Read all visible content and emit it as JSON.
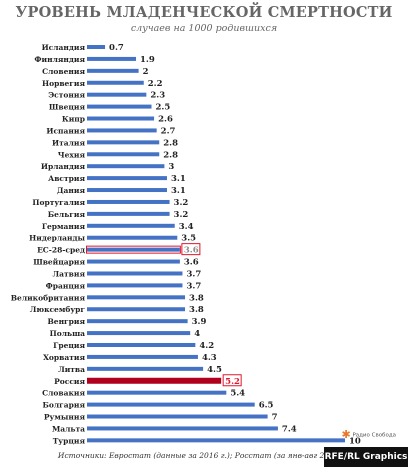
{
  "header": {
    "title": "УРОВЕНЬ МЛАДЕНЧЕСКОЙ СМЕРТНОСТИ",
    "subtitle": "случаев на 1000 родившихся"
  },
  "footer": {
    "sources": "Источники: Евростат (данные за 2016 г.); Росстат (за янв-авг 2018 г.)",
    "credit": "RFE/RL Graphics",
    "logo_text": "Радио Свобода",
    "logo_icon": "radio-svoboda-logo-icon"
  },
  "colors": {
    "bar": "#4472c4",
    "highlight_russia": "#b0001e",
    "highlight_eu": "#4472c4",
    "highlight_box": "#e0162b",
    "text": "#222222"
  },
  "chart_data": {
    "type": "bar",
    "orientation": "horizontal",
    "title": "УРОВЕНЬ МЛАДЕНЧЕСКОЙ СМЕРТНОСТИ",
    "subtitle": "случаев на 1000 родившихся",
    "xlim": [
      0,
      10
    ],
    "grid": false,
    "categories": [
      "Исландия",
      "Финляндия",
      "Словения",
      "Норвегия",
      "Эстония",
      "Швеция",
      "Кипр",
      "Испания",
      "Италия",
      "Чехия",
      "Ирландия",
      "Австрия",
      "Дания",
      "Португалия",
      "Бельгия",
      "Германия",
      "Нидерланды",
      "ЕС-28-сред",
      "Швейцария",
      "Латвия",
      "Франция",
      "Великобритания",
      "Люксембург",
      "Венгрия",
      "Польша",
      "Греция",
      "Хорватия",
      "Литва",
      "Россия",
      "Словакия",
      "Болгария",
      "Румыния",
      "Мальта",
      "Турция"
    ],
    "values": [
      0.7,
      1.9,
      2,
      2.2,
      2.3,
      2.5,
      2.6,
      2.7,
      2.8,
      2.8,
      3,
      3.1,
      3.1,
      3.2,
      3.2,
      3.4,
      3.5,
      3.6,
      3.6,
      3.7,
      3.7,
      3.8,
      3.8,
      3.9,
      4,
      4.2,
      4.3,
      4.5,
      5.2,
      5.4,
      6.5,
      7,
      7.4,
      10
    ],
    "value_labels": [
      "0.7",
      "1.9",
      "2",
      "2.2",
      "2.3",
      "2.5",
      "2.6",
      "2.7",
      "2.8",
      "2.8",
      "3",
      "3.1",
      "3.1",
      "3.2",
      "3.2",
      "3.4",
      "3.5",
      "3.6",
      "3.6",
      "3.7",
      "3.7",
      "3.8",
      "3.8",
      "3.9",
      "4",
      "4.2",
      "4.3",
      "4.5",
      "5.2",
      "5.4",
      "6.5",
      "7",
      "7.4",
      "10"
    ],
    "highlighted": [
      "ЕС-28-сред",
      "Россия"
    ]
  }
}
